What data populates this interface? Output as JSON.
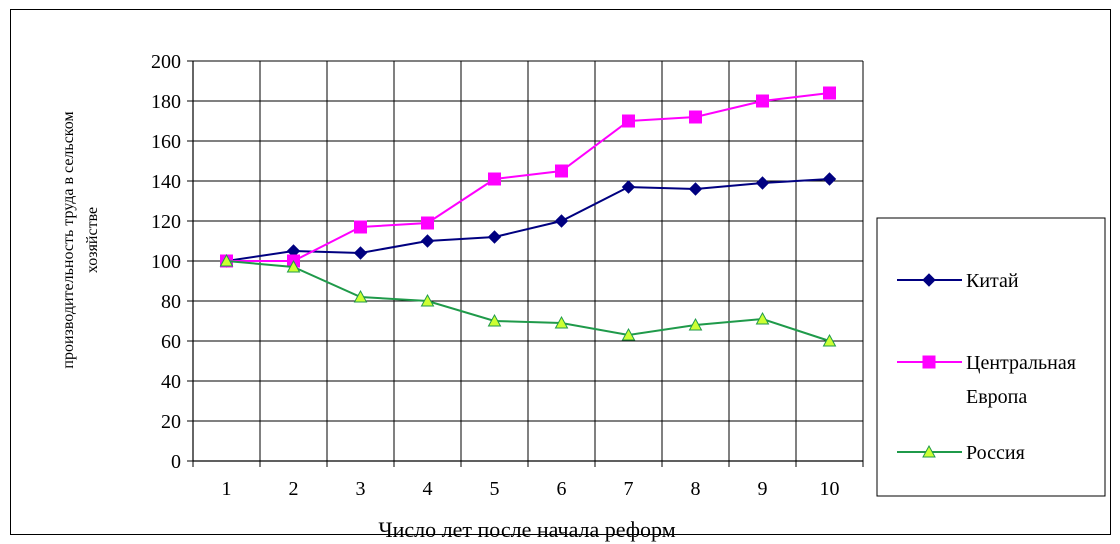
{
  "chart_data": {
    "type": "line",
    "title": "",
    "xlabel": "Число лет после начала реформ",
    "ylabel_lines": [
      "производительность труда в сельском",
      "хозяйстве"
    ],
    "categories": [
      "1",
      "2",
      "3",
      "4",
      "5",
      "6",
      "7",
      "8",
      "9",
      "10"
    ],
    "ylim": [
      0,
      200
    ],
    "yticks": [
      0,
      20,
      40,
      60,
      80,
      100,
      120,
      140,
      160,
      180,
      200
    ],
    "grid": true,
    "legend_position": "right",
    "series": [
      {
        "name": "Китай",
        "color": "#000080",
        "marker": "diamond",
        "values": [
          100,
          105,
          104,
          110,
          112,
          120,
          137,
          136,
          139,
          141
        ]
      },
      {
        "name": "Центральная Европа",
        "legend_lines": [
          "Центральная",
          "Европа"
        ],
        "color": "#ff00ff",
        "marker": "square",
        "values": [
          100,
          100,
          117,
          119,
          141,
          145,
          170,
          172,
          180,
          184
        ]
      },
      {
        "name": "Россия",
        "color": "#1f9a4a",
        "marker": "triangle",
        "marker_fill": "#ccff33",
        "values": [
          100,
          97,
          82,
          80,
          70,
          69,
          63,
          68,
          71,
          60
        ]
      }
    ]
  }
}
